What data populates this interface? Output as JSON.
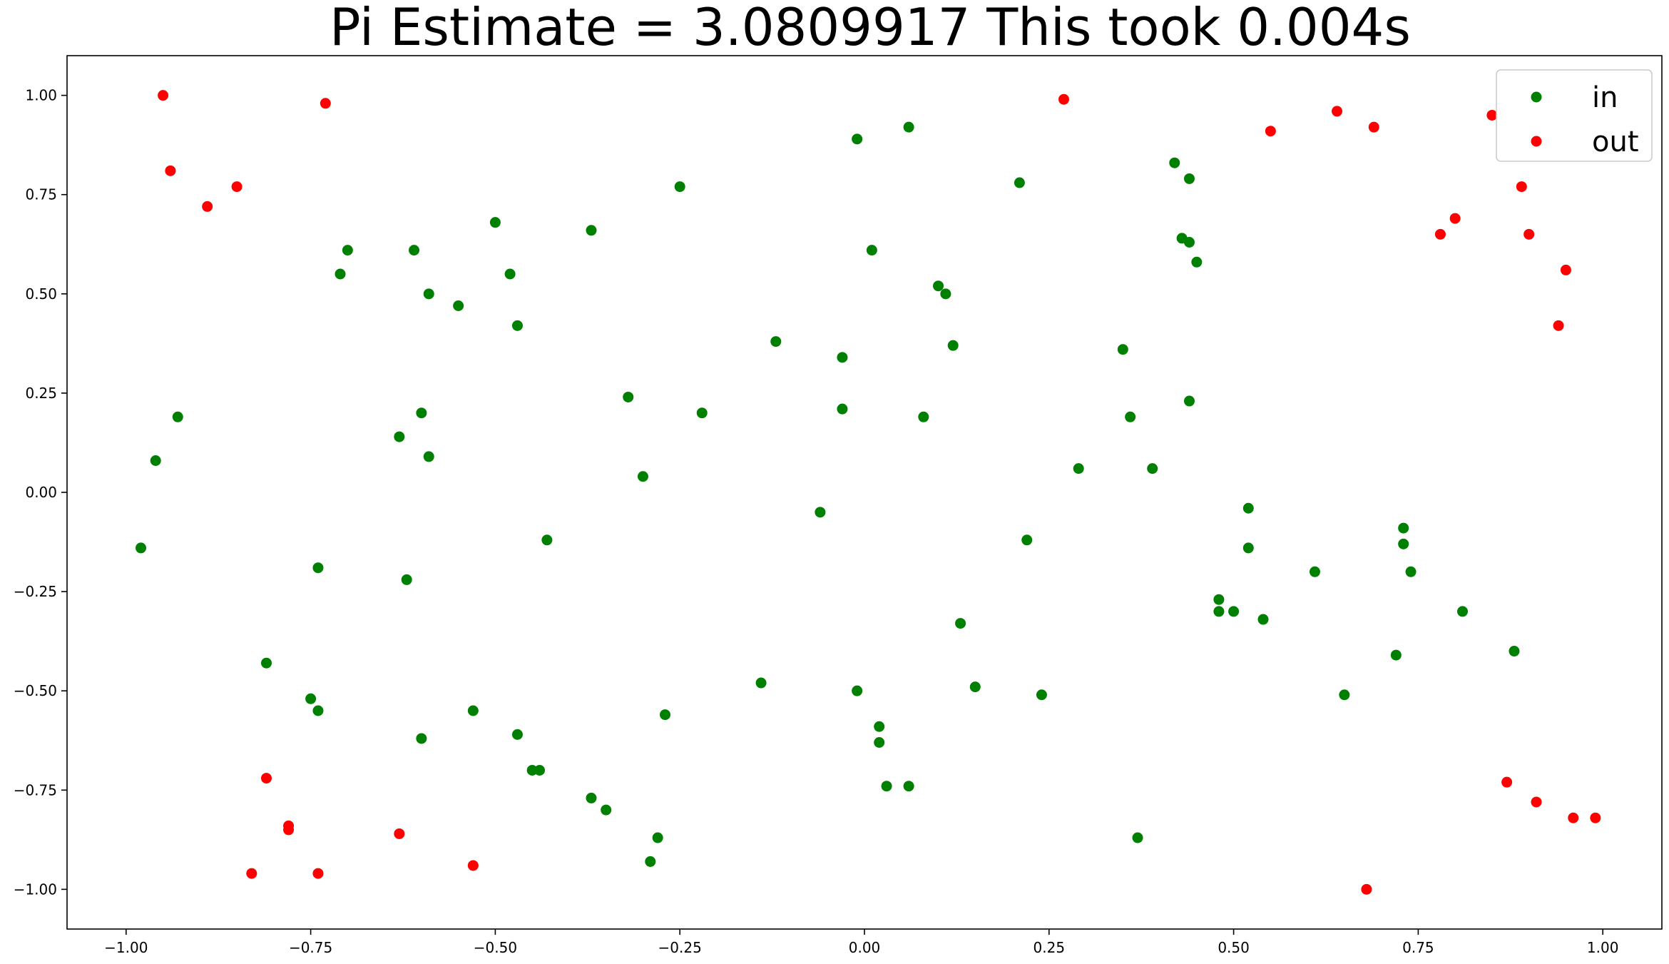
{
  "chart_data": {
    "type": "scatter",
    "title": "Pi Estimate = 3.0809917 This took 0.004s",
    "xlabel": "",
    "ylabel": "",
    "xlim": [
      -1.08,
      1.08
    ],
    "ylim": [
      -1.1,
      1.1
    ],
    "x_ticks": [
      -1.0,
      -0.75,
      -0.5,
      -0.25,
      0.0,
      0.25,
      0.5,
      0.75,
      1.0
    ],
    "y_ticks": [
      1.0,
      0.75,
      0.5,
      0.25,
      0.0,
      -0.25,
      -0.5,
      -0.75,
      -1.0
    ],
    "x_tick_labels": [
      "−1.00",
      "−0.75",
      "−0.50",
      "−0.25",
      "0.00",
      "0.25",
      "0.50",
      "0.75",
      "1.00"
    ],
    "y_tick_labels": [
      "1.00",
      "0.75",
      "0.50",
      "0.25",
      "0.00",
      "−0.25",
      "−0.50",
      "−0.75",
      "−1.00"
    ],
    "grid": false,
    "legend_position": "top-right",
    "series": [
      {
        "name": "in",
        "color": "#008000",
        "points": [
          [
            -0.98,
            -0.14
          ],
          [
            -0.96,
            0.08
          ],
          [
            -0.93,
            0.19
          ],
          [
            -0.81,
            -0.43
          ],
          [
            -0.75,
            -0.52
          ],
          [
            -0.74,
            -0.55
          ],
          [
            -0.74,
            -0.19
          ],
          [
            -0.7,
            0.61
          ],
          [
            -0.71,
            0.55
          ],
          [
            -0.63,
            0.14
          ],
          [
            -0.61,
            0.61
          ],
          [
            -0.62,
            -0.22
          ],
          [
            -0.6,
            0.2
          ],
          [
            -0.59,
            0.5
          ],
          [
            -0.59,
            0.09
          ],
          [
            -0.6,
            -0.62
          ],
          [
            -0.55,
            0.47
          ],
          [
            -0.53,
            -0.55
          ],
          [
            -0.5,
            0.68
          ],
          [
            -0.48,
            0.55
          ],
          [
            -0.47,
            0.42
          ],
          [
            -0.47,
            -0.61
          ],
          [
            -0.45,
            -0.7
          ],
          [
            -0.44,
            -0.7
          ],
          [
            -0.43,
            -0.12
          ],
          [
            -0.37,
            0.66
          ],
          [
            -0.37,
            -0.77
          ],
          [
            -0.35,
            -0.8
          ],
          [
            -0.32,
            0.24
          ],
          [
            -0.3,
            0.04
          ],
          [
            -0.28,
            -0.87
          ],
          [
            -0.29,
            -0.93
          ],
          [
            -0.27,
            -0.56
          ],
          [
            -0.25,
            0.77
          ],
          [
            -0.22,
            0.2
          ],
          [
            -0.14,
            -0.48
          ],
          [
            -0.12,
            0.38
          ],
          [
            -0.06,
            -0.05
          ],
          [
            -0.03,
            0.21
          ],
          [
            -0.03,
            0.34
          ],
          [
            -0.01,
            0.89
          ],
          [
            -0.01,
            -0.5
          ],
          [
            0.01,
            0.61
          ],
          [
            0.02,
            -0.59
          ],
          [
            0.02,
            -0.63
          ],
          [
            0.03,
            -0.74
          ],
          [
            0.06,
            -0.74
          ],
          [
            0.06,
            0.92
          ],
          [
            0.08,
            0.19
          ],
          [
            0.1,
            0.52
          ],
          [
            0.11,
            0.5
          ],
          [
            0.12,
            0.37
          ],
          [
            0.13,
            -0.33
          ],
          [
            0.15,
            -0.49
          ],
          [
            0.21,
            0.78
          ],
          [
            0.22,
            -0.12
          ],
          [
            0.24,
            -0.51
          ],
          [
            0.29,
            0.06
          ],
          [
            0.35,
            0.36
          ],
          [
            0.36,
            0.19
          ],
          [
            0.37,
            -0.87
          ],
          [
            0.39,
            0.06
          ],
          [
            0.42,
            0.83
          ],
          [
            0.43,
            0.64
          ],
          [
            0.44,
            0.63
          ],
          [
            0.44,
            0.79
          ],
          [
            0.45,
            0.58
          ],
          [
            0.44,
            0.23
          ],
          [
            0.48,
            -0.3
          ],
          [
            0.48,
            -0.27
          ],
          [
            0.5,
            -0.3
          ],
          [
            0.52,
            -0.04
          ],
          [
            0.52,
            -0.14
          ],
          [
            0.54,
            -0.32
          ],
          [
            0.61,
            -0.2
          ],
          [
            0.65,
            -0.51
          ],
          [
            0.72,
            -0.41
          ],
          [
            0.73,
            -0.09
          ],
          [
            0.73,
            -0.13
          ],
          [
            0.74,
            -0.2
          ],
          [
            0.81,
            -0.3
          ],
          [
            0.88,
            -0.4
          ]
        ]
      },
      {
        "name": "out",
        "color": "#ff0000",
        "points": [
          [
            -0.95,
            1.0
          ],
          [
            -0.94,
            0.81
          ],
          [
            -0.89,
            0.72
          ],
          [
            -0.85,
            0.77
          ],
          [
            -0.73,
            0.98
          ],
          [
            -0.81,
            -0.72
          ],
          [
            -0.78,
            -0.84
          ],
          [
            -0.78,
            -0.85
          ],
          [
            -0.83,
            -0.96
          ],
          [
            -0.74,
            -0.96
          ],
          [
            -0.63,
            -0.86
          ],
          [
            -0.53,
            -0.94
          ],
          [
            0.27,
            0.99
          ],
          [
            0.55,
            0.91
          ],
          [
            0.64,
            0.96
          ],
          [
            0.69,
            0.92
          ],
          [
            0.68,
            -1.0
          ],
          [
            0.78,
            0.65
          ],
          [
            0.8,
            0.69
          ],
          [
            0.85,
            0.95
          ],
          [
            0.89,
            0.77
          ],
          [
            0.9,
            0.65
          ],
          [
            0.95,
            0.56
          ],
          [
            0.94,
            0.42
          ],
          [
            0.87,
            -0.73
          ],
          [
            0.91,
            -0.78
          ],
          [
            0.96,
            -0.82
          ],
          [
            0.99,
            -0.82
          ]
        ]
      }
    ]
  }
}
